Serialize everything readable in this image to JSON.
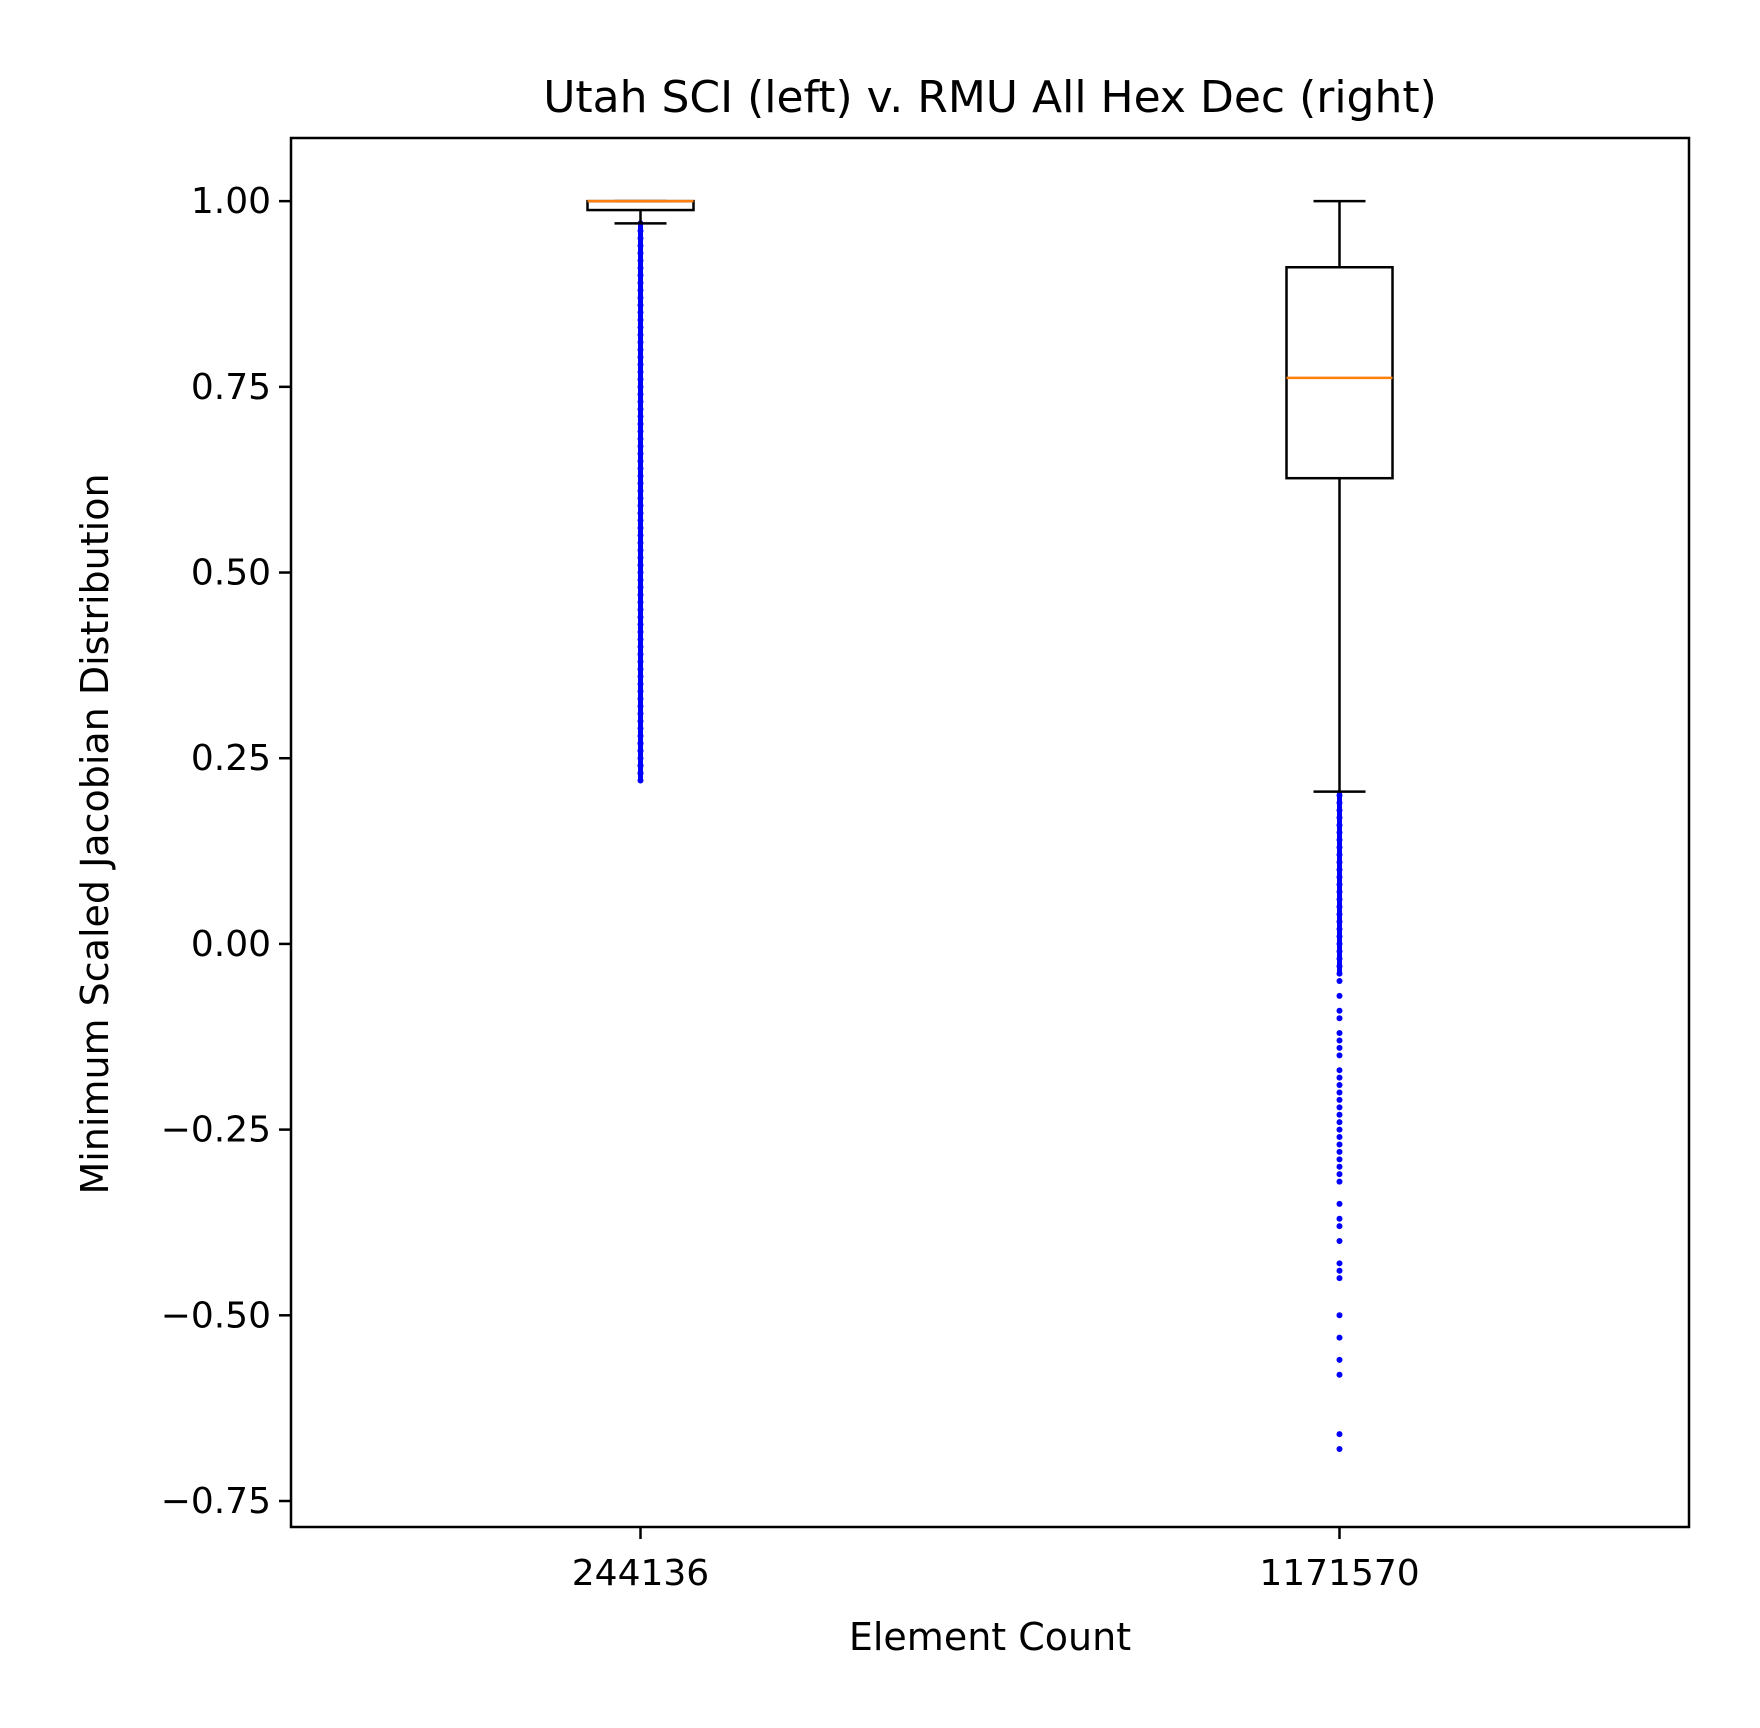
{
  "chart_data": {
    "type": "box",
    "title": "Utah SCI (left) v. RMU All Hex Dec (right)",
    "xlabel": "Element Count",
    "ylabel": "Minimum Scaled Jacobian Distribution",
    "ylim": [
      -0.785,
      1.085
    ],
    "yticks": [
      1.0,
      0.75,
      0.5,
      0.25,
      0.0,
      -0.25,
      -0.5,
      -0.75
    ],
    "ytick_labels": [
      "1.00",
      "0.75",
      "0.50",
      "0.25",
      "0.00",
      "−0.25",
      "−0.50",
      "−0.75"
    ],
    "categories": [
      "244136",
      "1171570"
    ],
    "grid": false,
    "colors": {
      "box": "#000000",
      "median": "#ff7f0e",
      "flier": "#0000ff"
    },
    "series": [
      {
        "whisker_low": 0.97,
        "q1": 0.988,
        "median": 1.0,
        "q3": 1.0,
        "whisker_high": 1.0,
        "fliers_range": [
          0.22,
          0.97
        ],
        "fliers_sparse": [
          0.23,
          0.24,
          0.26,
          0.27
        ]
      },
      {
        "whisker_low": 0.205,
        "q1": 0.627,
        "median": 0.762,
        "q3": 0.911,
        "whisker_high": 1.0,
        "fliers_range": [
          -0.04,
          0.205
        ],
        "fliers_sparse": [
          -0.05,
          -0.07,
          -0.09,
          -0.1,
          -0.12,
          -0.13,
          -0.14,
          -0.15,
          -0.17,
          -0.18,
          -0.19,
          -0.2,
          -0.21,
          -0.22,
          -0.23,
          -0.24,
          -0.25,
          -0.26,
          -0.27,
          -0.28,
          -0.29,
          -0.3,
          -0.31,
          -0.32,
          -0.35,
          -0.37,
          -0.38,
          -0.4,
          -0.43,
          -0.44,
          -0.45,
          -0.5,
          -0.53,
          -0.56,
          -0.58,
          -0.66,
          -0.68
        ]
      }
    ]
  }
}
